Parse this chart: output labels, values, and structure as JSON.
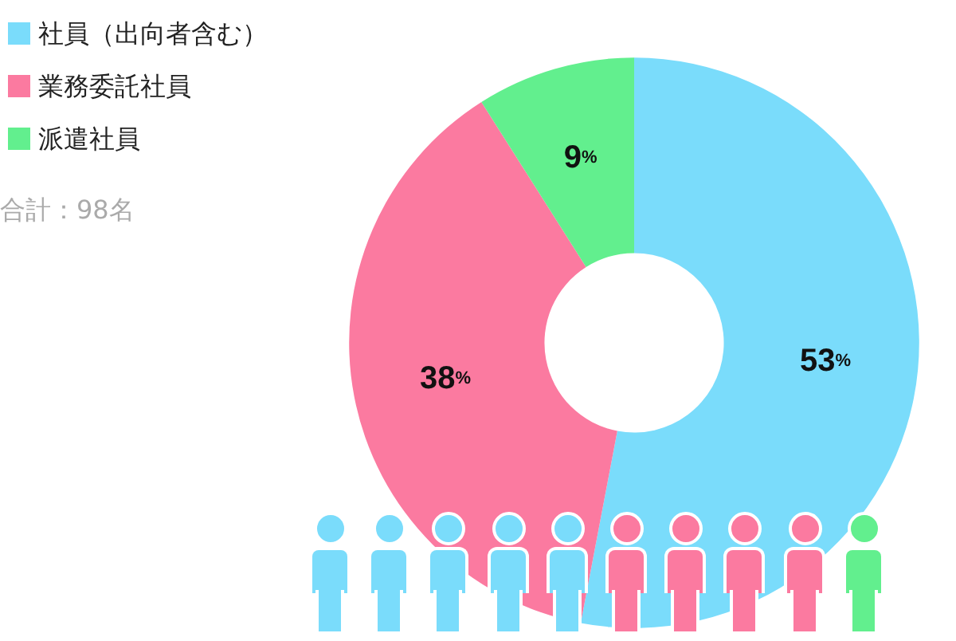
{
  "chart_data": {
    "type": "donut",
    "categories": [
      "社員（出向者含む）",
      "業務委託社員",
      "派遣社員"
    ],
    "values": [
      53,
      38,
      9
    ],
    "colors": [
      "#7adcfb",
      "#fb7aa0",
      "#62ef8e"
    ],
    "value_labels": [
      "53%",
      "38%",
      "9%"
    ],
    "legend": "top left",
    "annotations": [
      "合計：98名"
    ]
  }
}
